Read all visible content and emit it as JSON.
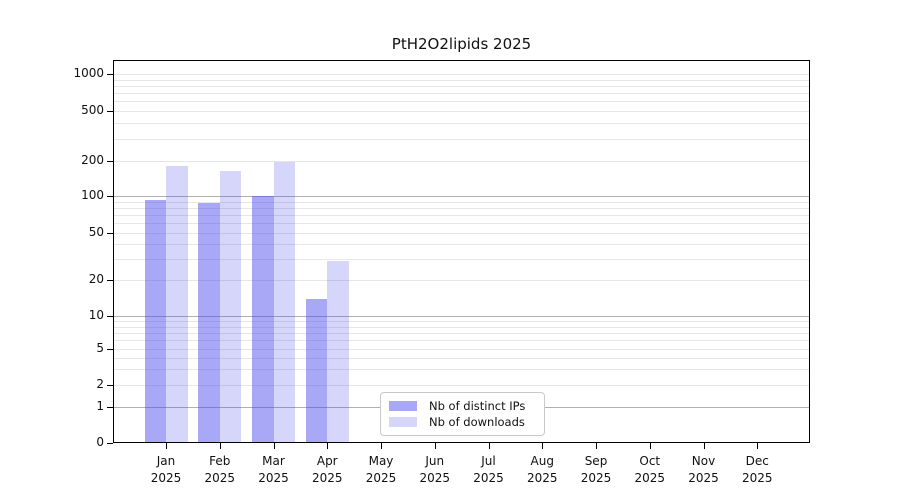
{
  "chart_data": {
    "type": "bar",
    "title": "PtH2O2lipids 2025",
    "categories": [
      "Jan",
      "Feb",
      "Mar",
      "Apr",
      "May",
      "Jun",
      "Jul",
      "Aug",
      "Sep",
      "Oct",
      "Nov",
      "Dec"
    ],
    "x_year_label": "2025",
    "series": [
      {
        "name": "Nb of distinct IPs",
        "color": "#a8a8f0",
        "fill": "rgba(70,70,238,0.47)",
        "values": [
          92,
          87,
          100,
          14,
          0,
          0,
          0,
          0,
          0,
          0,
          0,
          0
        ]
      },
      {
        "name": "Nb of downloads",
        "color": "#dcdcf8",
        "fill": "rgba(70,70,238,0.22)",
        "values": [
          180,
          165,
          195,
          29,
          0,
          0,
          0,
          0,
          0,
          0,
          0,
          0
        ]
      }
    ],
    "y_ticks": [
      1000,
      500,
      200,
      100,
      50,
      20,
      10,
      5,
      2,
      1,
      0
    ],
    "ylim": [
      0,
      1000
    ],
    "yscale": "log-like (symlog, 0 at baseline)",
    "grid": true,
    "legend_position": "lower center",
    "colors": {
      "background": "#ffffff",
      "axis": "#000000",
      "grid_major": "#b0b0b0",
      "grid_minor": "#e6e6e6",
      "text": "#111111"
    }
  }
}
